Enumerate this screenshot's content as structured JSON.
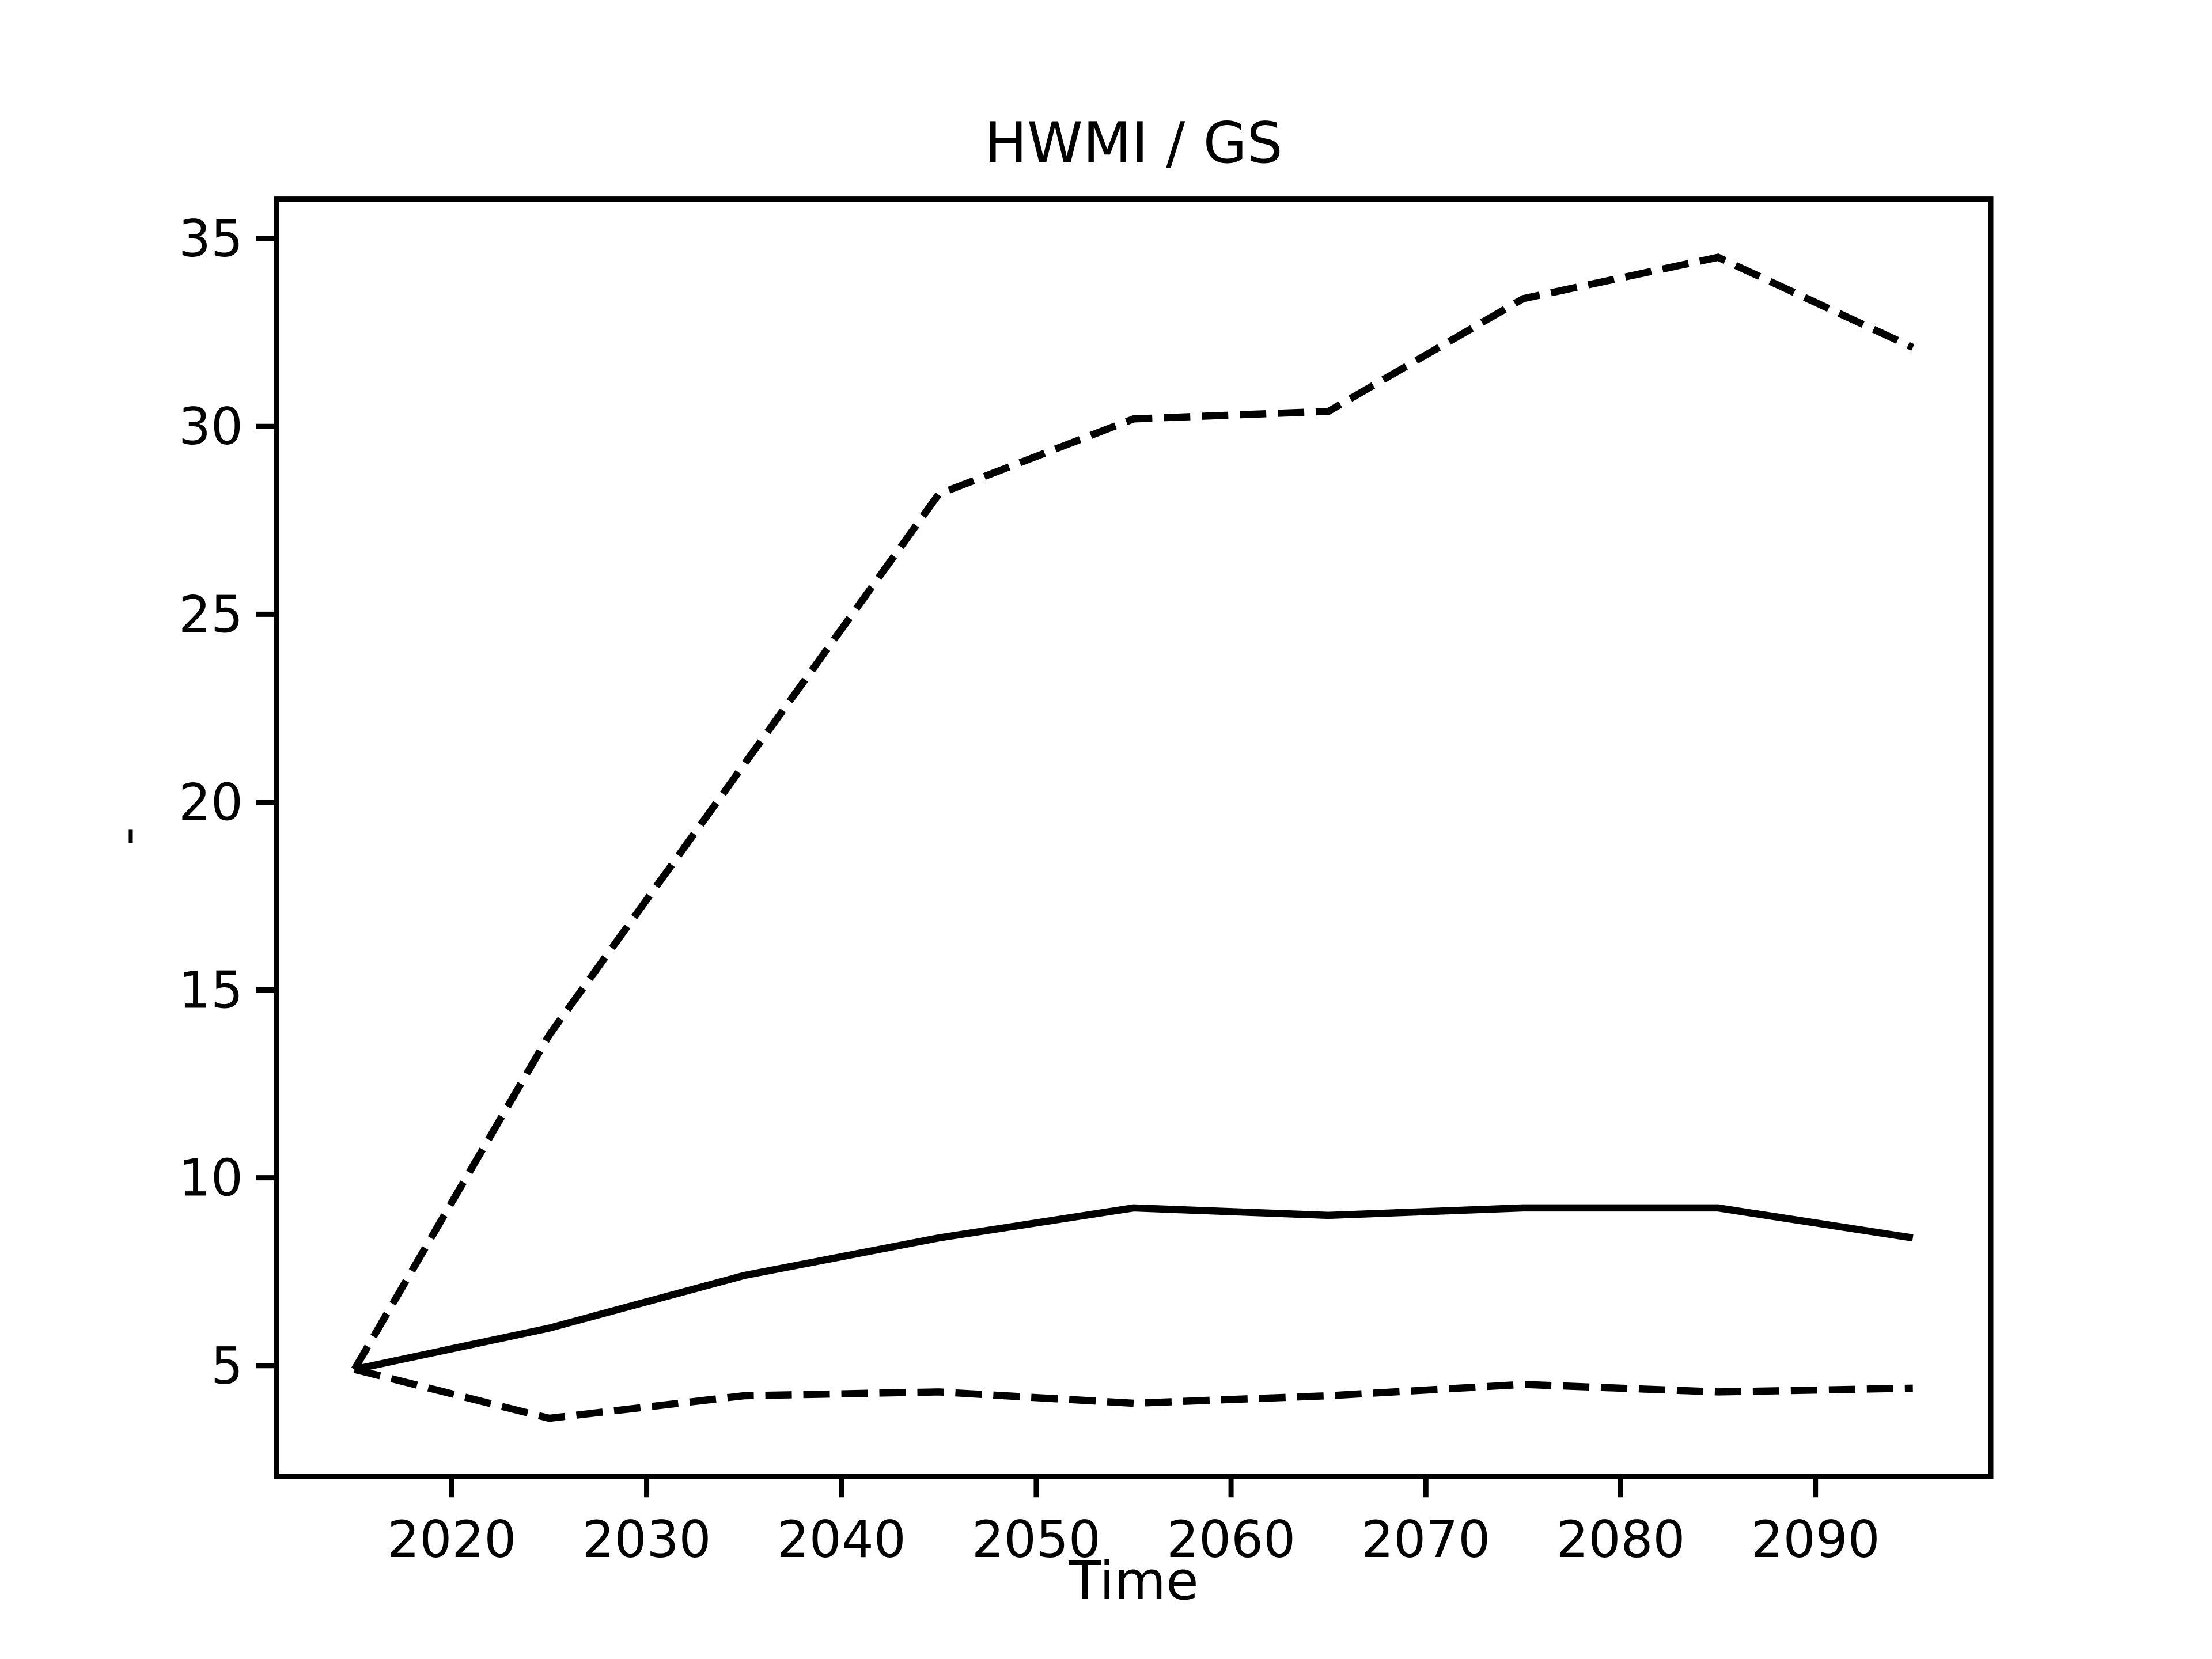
{
  "figure": {
    "background_color": "#ffffff",
    "foreground_color": "#000000"
  },
  "chart_data": {
    "type": "line",
    "title": "HWMI / GS",
    "xlabel": "Time",
    "ylabel": "-",
    "x": [
      2015,
      2025,
      2035,
      2045,
      2055,
      2065,
      2075,
      2085,
      2095
    ],
    "series": [
      {
        "name": "upper-dashed",
        "style": "dashed",
        "values": [
          4.9,
          13.8,
          21.0,
          28.2,
          30.2,
          30.4,
          33.4,
          34.5,
          32.1
        ]
      },
      {
        "name": "middle-solid",
        "style": "solid",
        "values": [
          4.9,
          6.0,
          7.4,
          8.4,
          9.2,
          9.0,
          9.2,
          9.2,
          8.4
        ]
      },
      {
        "name": "lower-dashed",
        "style": "dashed",
        "values": [
          4.9,
          3.6,
          4.2,
          4.3,
          4.0,
          4.2,
          4.5,
          4.3,
          4.4
        ]
      }
    ],
    "x_ticks": [
      2020,
      2030,
      2040,
      2050,
      2060,
      2070,
      2080,
      2090
    ],
    "y_ticks": [
      5,
      10,
      15,
      20,
      25,
      30,
      35
    ],
    "xlim": [
      2011,
      2099
    ],
    "ylim": [
      2.05,
      36.05
    ],
    "grid": false,
    "legend": null,
    "line_color": "#000000"
  }
}
